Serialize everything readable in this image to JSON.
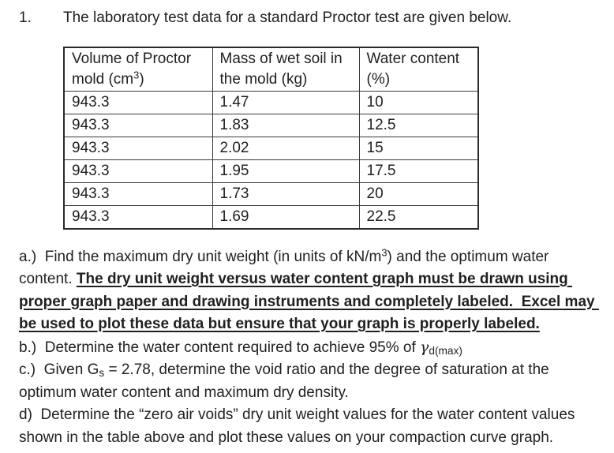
{
  "page": {
    "background": "#ffffff",
    "text_color": "#1f1f1f"
  },
  "problem": {
    "number": "1.",
    "title": "The laboratory test data for a standard Proctor test are given below."
  },
  "table": {
    "headers": [
      {
        "segments": [
          {
            "text": "Volume of Proctor mold (cm",
            "style": "plain"
          },
          {
            "text": "3",
            "style": "sup"
          },
          {
            "text": ")",
            "style": "plain"
          }
        ]
      },
      {
        "segments": [
          {
            "text": "Mass of wet soil in the mold (kg)",
            "style": "plain"
          }
        ]
      },
      {
        "segments": [
          {
            "text": "Water content (%)",
            "style": "plain"
          }
        ]
      }
    ],
    "rows": [
      [
        "943.3",
        "1.47",
        "10"
      ],
      [
        "943.3",
        "1.83",
        "12.5"
      ],
      [
        "943.3",
        "2.02",
        "15"
      ],
      [
        "943.3",
        "1.95",
        "17.5"
      ],
      [
        "943.3",
        "1.73",
        "20"
      ],
      [
        "943.3",
        "1.69",
        "22.5"
      ]
    ]
  },
  "questions": {
    "a": {
      "segments": [
        {
          "text": "a.)  Find the maximum dry unit weight (in units of kN/m",
          "style": "plain"
        },
        {
          "text": "3",
          "style": "sup"
        },
        {
          "text": ") and the optimum water content. ",
          "style": "plain"
        },
        {
          "text": "The dry unit weight versus water content graph must be drawn using proper graph paper and drawing instruments and completely labeled.  Excel may be used to plot these data but ensure that your graph is properly labeled.",
          "style": "boldu"
        }
      ]
    },
    "b": {
      "segments": [
        {
          "text": "b.)  Determine the water content required to achieve 95% of ",
          "style": "plain"
        },
        {
          "text": "γ",
          "style": "gamma"
        },
        {
          "text": "d(max)",
          "style": "sub"
        }
      ]
    },
    "c": {
      "segments": [
        {
          "text": "c.)  Given G",
          "style": "plain"
        },
        {
          "text": "s",
          "style": "sub"
        },
        {
          "text": " = 2.78, determine the void ratio and the degree of saturation at the optimum water content and maximum dry density.",
          "style": "plain"
        }
      ]
    },
    "d": {
      "segments": [
        {
          "text": "d)  Determine the “zero air voids” dry unit weight values for the water content values shown in the table above and plot these values on your compaction curve graph.",
          "style": "plain"
        }
      ]
    }
  }
}
